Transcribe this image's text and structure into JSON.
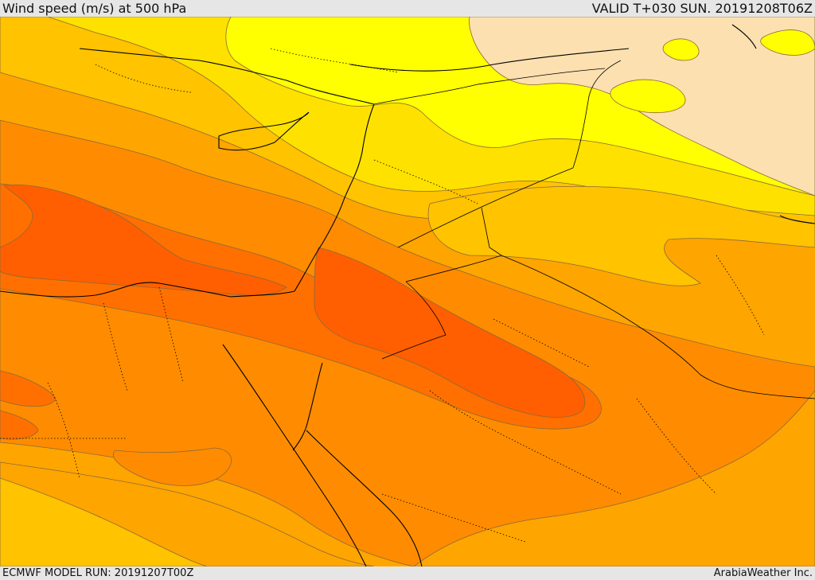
{
  "header": {
    "title": "Wind speed (m/s) at 500 hPa",
    "valid": "VALID T+030 SUN. 20191208T06Z"
  },
  "footer": {
    "model_run": "ECMWF MODEL RUN: 20191207T00Z",
    "credit": "ArabiaWeather Inc."
  },
  "palette": {
    "peach": "#fde0b0",
    "yellow": "#ffff00",
    "gold": "#ffe100",
    "amber": "#ffc300",
    "orange_light": "#ffa500",
    "orange": "#ff8c00",
    "orange_dark": "#ff7000",
    "orange_deep": "#ff5f00",
    "contour": "#8a6a3a",
    "coast": "#000000"
  }
}
